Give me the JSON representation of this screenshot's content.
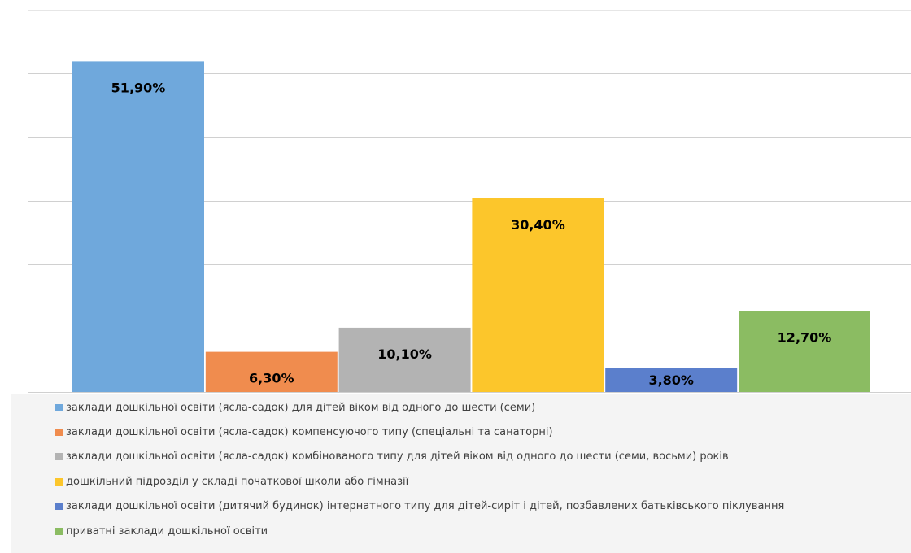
{
  "chart_data": {
    "type": "bar",
    "title": "",
    "xlabel": "",
    "ylabel": "",
    "ylim": [
      0,
      60
    ],
    "grid": true,
    "legend_position": "bottom",
    "categories": [
      "заклади дошкільної освіти (ясла-садок) для дітей віком від одного до шести (семи)",
      "заклади дошкільної освіти (ясла-садок) компенсуючого типу (спеціальні та санаторні)",
      "заклади дошкільної освіти (ясла-садок) комбінованого типу для дітей віком від одного до шести (семи, восьми) років",
      "дошкільний підрозділ у складі початкової школи або гімназії",
      "заклади дошкільної освіти (дитячий будинок) інтернатного типу для дітей-сиріт і дітей, позбавлених батьківського піклування",
      "приватні заклади дошкільної освіти"
    ],
    "values": [
      51.9,
      6.3,
      10.1,
      30.4,
      3.8,
      12.7
    ],
    "data_labels": [
      "51,90%",
      "6,30%",
      "10,10%",
      "30,40%",
      "3,80%",
      "12,70%"
    ],
    "colors": [
      "#6fa8dc",
      "#f08c4e",
      "#b3b3b3",
      "#fcc62b",
      "#5b7fcc",
      "#8bbc62"
    ]
  }
}
